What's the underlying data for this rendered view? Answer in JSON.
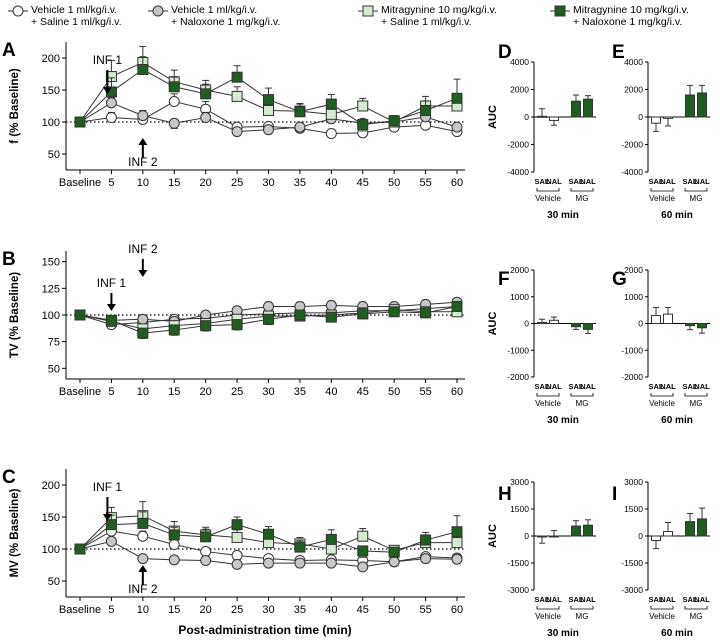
{
  "legend": [
    {
      "line1": "Vehicle 1 ml/kg/i.v.",
      "line2": "+ Saline 1 ml/kg/i.v.",
      "marker": "circle",
      "fill": "#ffffff"
    },
    {
      "line1": "Vehicle 1 ml/kg/i.v.",
      "line2": "+ Naloxone 1 mg/kg/i.v.",
      "marker": "circle",
      "fill": "#c8c8c8"
    },
    {
      "line1": "Mitragynine 10 mg/kg/i.v.",
      "line2": "+ Saline 1 ml/kg/i.v.",
      "marker": "square",
      "fill": "#d4ebcf"
    },
    {
      "line1": "Mitragynine 10 mg/kg/i.v.",
      "line2": "+ Naloxone 1 mg/kg/i.v.",
      "marker": "square",
      "fill": "#1e5e1e"
    }
  ],
  "colors": {
    "veh_sal": "#ffffff",
    "veh_nal": "#c8c8c8",
    "mg_sal": "#d4ebcf",
    "mg_nal": "#1e5e1e",
    "stroke": "#333333"
  },
  "x_axis_title": "Post-administration time (min)",
  "chart_data": [
    {
      "type": "line",
      "panel": "A",
      "ylabel": "f (% Baseline)",
      "ylim": [
        25,
        225
      ],
      "yticks": [
        50,
        100,
        150,
        200
      ],
      "categories": [
        "Baseline",
        "5",
        "10",
        "15",
        "20",
        "25",
        "30",
        "35",
        "40",
        "45",
        "50",
        "55",
        "60"
      ],
      "annotations": [
        {
          "text": "INF 1",
          "x": "5",
          "dir": "down"
        },
        {
          "text": "INF 2",
          "x": "10",
          "dir": "up"
        }
      ],
      "series": [
        {
          "name": "Vehicle + Saline",
          "values": [
            100,
            107,
            104,
            132,
            120,
            92,
            93,
            90,
            82,
            83,
            92,
            95,
            85
          ],
          "errors": [
            3,
            8,
            6,
            12,
            12,
            7,
            6,
            5,
            5,
            5,
            5,
            6,
            5
          ]
        },
        {
          "name": "Vehicle + Naloxone",
          "values": [
            100,
            130,
            110,
            98,
            107,
            85,
            88,
            92,
            105,
            98,
            100,
            108,
            92
          ],
          "errors": [
            3,
            8,
            8,
            8,
            8,
            6,
            5,
            6,
            8,
            8,
            6,
            8,
            6
          ]
        },
        {
          "name": "Mitragynine + Saline",
          "values": [
            100,
            171,
            193,
            163,
            150,
            140,
            118,
            117,
            112,
            125,
            100,
            125,
            125
          ],
          "errors": [
            3,
            25,
            25,
            18,
            15,
            15,
            12,
            12,
            10,
            12,
            8,
            15,
            18
          ]
        },
        {
          "name": "Mitragynine + Naloxone",
          "values": [
            100,
            147,
            182,
            155,
            144,
            170,
            135,
            116,
            128,
            96,
            102,
            118,
            137
          ],
          "errors": [
            3,
            22,
            20,
            15,
            15,
            18,
            18,
            12,
            15,
            10,
            8,
            15,
            30
          ]
        }
      ]
    },
    {
      "type": "bar",
      "panel": "D",
      "ylabel": "AUC",
      "ylim": [
        -4000,
        4000
      ],
      "yticks": [
        -4000,
        -2000,
        0,
        2000,
        4000
      ],
      "categories": [
        "SAL",
        "NAL",
        "SAL",
        "NAL"
      ],
      "groups": [
        "Vehicle",
        "MG"
      ],
      "xlabel": "30 min",
      "values": [
        50,
        -250,
        1150,
        1300
      ],
      "errors": [
        550,
        350,
        450,
        250
      ]
    },
    {
      "type": "bar",
      "panel": "E",
      "ylabel": "",
      "ylim": [
        -4000,
        4000
      ],
      "yticks": [
        -4000,
        -2000,
        0,
        2000,
        4000
      ],
      "categories": [
        "SAL",
        "NAL",
        "SAL",
        "NAL"
      ],
      "groups": [
        "Vehicle",
        "MG"
      ],
      "xlabel": "60 min",
      "values": [
        -450,
        -100,
        1600,
        1750
      ],
      "errors": [
        600,
        550,
        700,
        550
      ]
    },
    {
      "type": "line",
      "panel": "B",
      "ylabel": "TV (% Baseline)",
      "ylim": [
        40,
        160
      ],
      "yticks": [
        50,
        75,
        100,
        125,
        150
      ],
      "categories": [
        "Baseline",
        "5",
        "10",
        "15",
        "20",
        "25",
        "30",
        "35",
        "40",
        "45",
        "50",
        "55",
        "60"
      ],
      "annotations": [
        {
          "text": "INF 1",
          "x": "5",
          "dir": "down"
        },
        {
          "text": "INF 2",
          "x": "10",
          "dir": "down"
        }
      ],
      "series": [
        {
          "name": "Vehicle + Saline",
          "values": [
            100,
            91,
            93,
            96,
            97,
            100,
            101,
            102,
            102,
            104,
            104,
            106,
            108
          ],
          "errors": [
            2,
            3,
            3,
            3,
            3,
            3,
            3,
            3,
            3,
            3,
            3,
            3,
            3
          ]
        },
        {
          "name": "Vehicle + Naloxone",
          "values": [
            100,
            95,
            96,
            94,
            100,
            104,
            108,
            108,
            109,
            108,
            108,
            110,
            112
          ],
          "errors": [
            2,
            3,
            3,
            3,
            3,
            4,
            4,
            4,
            4,
            4,
            3,
            4,
            3
          ]
        },
        {
          "name": "Mitragynine + Saline",
          "values": [
            100,
            94,
            87,
            90,
            92,
            96,
            99,
            99,
            100,
            102,
            105,
            103,
            103
          ],
          "errors": [
            2,
            4,
            5,
            5,
            5,
            5,
            5,
            4,
            4,
            4,
            4,
            4,
            4
          ]
        },
        {
          "name": "Mitragynine + Naloxone",
          "values": [
            100,
            95,
            83,
            86,
            90,
            91,
            96,
            100,
            98,
            101,
            103,
            102,
            108
          ],
          "errors": [
            2,
            4,
            5,
            5,
            5,
            5,
            5,
            4,
            4,
            4,
            4,
            4,
            4
          ]
        }
      ]
    },
    {
      "type": "bar",
      "panel": "F",
      "ylabel": "AUC",
      "ylim": [
        -2000,
        2000
      ],
      "yticks": [
        -2000,
        -1000,
        0,
        1000,
        2000
      ],
      "categories": [
        "SAL",
        "NAL",
        "SAL",
        "NAL"
      ],
      "groups": [
        "Vehicle",
        "MG"
      ],
      "xlabel": "30 min",
      "values": [
        40,
        120,
        -120,
        -220
      ],
      "errors": [
        120,
        120,
        100,
        150
      ]
    },
    {
      "type": "bar",
      "panel": "G",
      "ylabel": "",
      "ylim": [
        -2000,
        2000
      ],
      "yticks": [
        -2000,
        -1000,
        0,
        1000,
        2000
      ],
      "categories": [
        "SAL",
        "NAL",
        "SAL",
        "NAL"
      ],
      "groups": [
        "Vehicle",
        "MG"
      ],
      "xlabel": "60 min",
      "values": [
        300,
        350,
        -80,
        -160
      ],
      "errors": [
        300,
        250,
        150,
        200
      ]
    },
    {
      "type": "line",
      "panel": "C",
      "ylabel": "MV (% Baseline)",
      "ylim": [
        25,
        225
      ],
      "yticks": [
        50,
        100,
        150,
        200
      ],
      "categories": [
        "Baseline",
        "5",
        "10",
        "15",
        "20",
        "25",
        "30",
        "35",
        "40",
        "45",
        "50",
        "55",
        "60"
      ],
      "annotations": [
        {
          "text": "INF 1",
          "x": "5",
          "dir": "down"
        },
        {
          "text": "INF 2",
          "x": "10",
          "dir": "up"
        }
      ],
      "series": [
        {
          "name": "Vehicle + Saline",
          "values": [
            100,
            128,
            120,
            107,
            96,
            90,
            85,
            82,
            83,
            82,
            80,
            88,
            86
          ],
          "errors": [
            3,
            8,
            8,
            8,
            8,
            6,
            5,
            5,
            5,
            5,
            5,
            5,
            5
          ]
        },
        {
          "name": "Vehicle + Naloxone",
          "values": [
            100,
            112,
            85,
            83,
            82,
            76,
            78,
            78,
            78,
            72,
            80,
            85,
            84
          ],
          "errors": [
            3,
            6,
            5,
            5,
            5,
            5,
            5,
            5,
            5,
            5,
            5,
            5,
            5
          ]
        },
        {
          "name": "Mitragynine + Saline",
          "values": [
            100,
            149,
            152,
            128,
            122,
            118,
            110,
            108,
            100,
            120,
            98,
            110,
            110
          ],
          "errors": [
            3,
            16,
            22,
            15,
            12,
            12,
            12,
            10,
            10,
            12,
            8,
            12,
            15
          ]
        },
        {
          "name": "Mitragynine + Naloxone",
          "values": [
            100,
            138,
            140,
            122,
            119,
            138,
            123,
            103,
            115,
            97,
            95,
            114,
            127
          ],
          "errors": [
            3,
            15,
            18,
            12,
            12,
            12,
            12,
            10,
            15,
            10,
            8,
            12,
            25
          ]
        }
      ]
    },
    {
      "type": "bar",
      "panel": "H",
      "ylabel": "AUC",
      "ylim": [
        -3000,
        3000
      ],
      "yticks": [
        -3000,
        -1500,
        0,
        1500,
        3000
      ],
      "categories": [
        "SAL",
        "NAL",
        "SAL",
        "NAL"
      ],
      "groups": [
        "Vehicle",
        "MG"
      ],
      "xlabel": "30 min",
      "values": [
        -50,
        0,
        550,
        600
      ],
      "errors": [
        350,
        300,
        300,
        300
      ]
    },
    {
      "type": "bar",
      "panel": "I",
      "ylabel": "",
      "ylim": [
        -3000,
        3000
      ],
      "yticks": [
        -3000,
        -1500,
        0,
        1500,
        3000
      ],
      "categories": [
        "SAL",
        "NAL",
        "SAL",
        "NAL"
      ],
      "groups": [
        "Vehicle",
        "MG"
      ],
      "xlabel": "60 min",
      "values": [
        -250,
        250,
        800,
        950
      ],
      "errors": [
        450,
        500,
        450,
        600
      ]
    }
  ]
}
